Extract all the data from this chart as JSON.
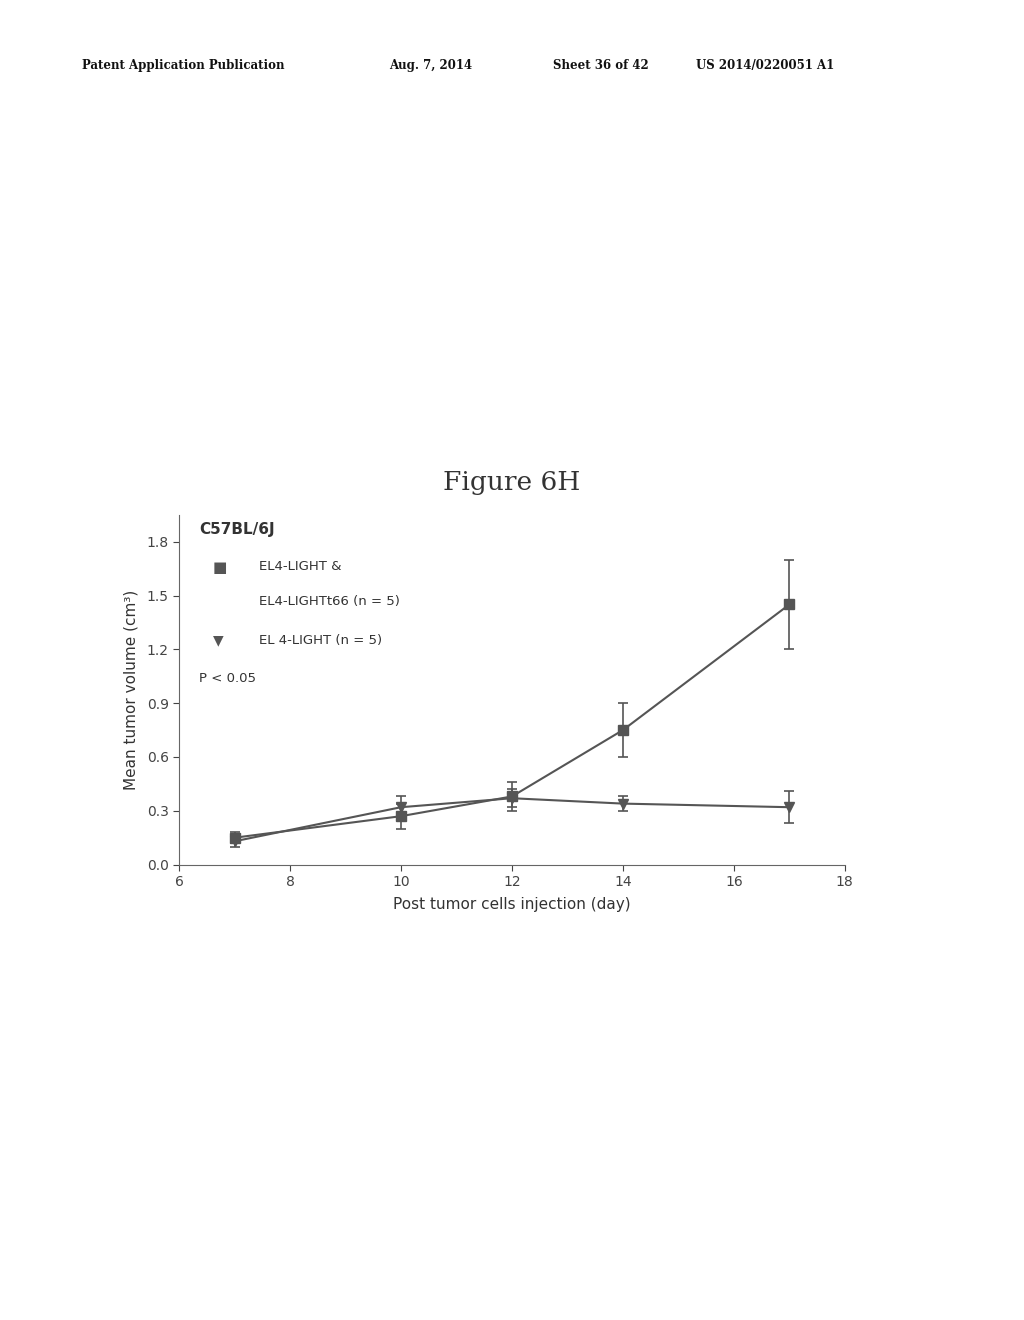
{
  "figure_title": "Figure 6H",
  "patent_line1": "Patent Application Publication",
  "patent_line2": "Aug. 7, 2014",
  "patent_line3": "Sheet 36 of 42",
  "patent_line4": "US 2014/0220051 A1",
  "chart_title_bold": "C57BL/6J",
  "xlabel": "Post tumor cells injection (day)",
  "ylabel": "Mean tumor volume (cm³)",
  "xlim": [
    6,
    18
  ],
  "ylim": [
    0.0,
    1.95
  ],
  "xticks": [
    6,
    8,
    10,
    12,
    14,
    16,
    18
  ],
  "yticks": [
    0.0,
    0.3,
    0.6,
    0.9,
    1.2,
    1.5,
    1.8
  ],
  "series1_label_line1": "EL4-LIGHT &",
  "series1_label_line2": "EL4-LIGHTt66 (n = 5)",
  "series2_label": "EL 4-LIGHT (n = 5)",
  "pvalue_label": "P < 0.05",
  "series1_x": [
    7,
    10,
    12,
    14,
    17
  ],
  "series1_y": [
    0.15,
    0.27,
    0.38,
    0.75,
    1.45
  ],
  "series1_yerr": [
    0.03,
    0.07,
    0.08,
    0.15,
    0.25
  ],
  "series2_x": [
    7,
    10,
    12,
    14,
    17
  ],
  "series2_y": [
    0.13,
    0.32,
    0.37,
    0.34,
    0.32
  ],
  "series2_yerr": [
    0.03,
    0.06,
    0.05,
    0.04,
    0.09
  ],
  "color_series1": "#555555",
  "color_series2": "#555555",
  "background_color": "#ffffff",
  "marker_series1": "s",
  "marker_series2": "v",
  "linewidth": 1.5,
  "markersize": 7,
  "font_color": "#333333"
}
